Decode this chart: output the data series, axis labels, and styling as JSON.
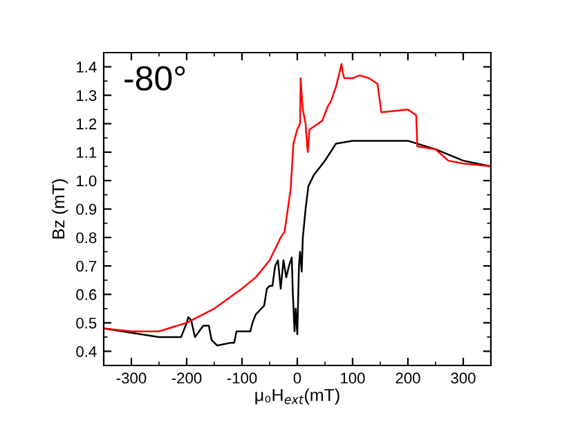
{
  "chart_data": {
    "type": "line",
    "xlabel": "μ₀H$_{ext}$(mT)",
    "ylabel": "Bz (mT)",
    "annotations": [
      "-80°"
    ],
    "xlim": [
      -350,
      350
    ],
    "xticks": [
      -300,
      -200,
      -100,
      0,
      100,
      200,
      300
    ],
    "ylim": [
      0.35,
      1.45
    ],
    "yticks": [
      0.4,
      0.5,
      0.6,
      0.7,
      0.8,
      0.9,
      {
        "value": 1.0,
        "label": "1.0"
      },
      1.1,
      1.2,
      1.3,
      1.4
    ],
    "grid": false,
    "legend": false,
    "marker": "none",
    "line_style": "solid",
    "series": [
      {
        "color": "#000000",
        "x": [
          -350,
          -300,
          -250,
          -210,
          -200,
          -197,
          -192,
          -185,
          -170,
          -160,
          -155,
          -145,
          -120,
          -114,
          -110,
          -85,
          -81,
          -75,
          -60,
          -55,
          -50,
          -45,
          -40,
          -35,
          -30,
          -25,
          -20,
          -15,
          -10,
          -8,
          -5,
          -3,
          0,
          3,
          5,
          8,
          10,
          15,
          20,
          30,
          50,
          70,
          100,
          150,
          200,
          250,
          300,
          350
        ],
        "values": [
          0.48,
          0.465,
          0.45,
          0.45,
          0.5,
          0.52,
          0.51,
          0.45,
          0.49,
          0.49,
          0.44,
          0.42,
          0.43,
          0.43,
          0.47,
          0.47,
          0.5,
          0.53,
          0.56,
          0.62,
          0.63,
          0.63,
          0.7,
          0.72,
          0.62,
          0.72,
          0.66,
          0.7,
          0.73,
          0.6,
          0.47,
          0.55,
          0.46,
          0.7,
          0.75,
          0.68,
          0.8,
          0.9,
          0.98,
          1.02,
          1.07,
          1.13,
          1.14,
          1.14,
          1.14,
          1.11,
          1.07,
          1.05
        ]
      },
      {
        "color": "#ff0000",
        "x": [
          -350,
          -300,
          -250,
          -200,
          -150,
          -100,
          -75,
          -50,
          -30,
          -23,
          -12,
          -7,
          0,
          5,
          6,
          8,
          10,
          15,
          18,
          19,
          22,
          30,
          45,
          55,
          61,
          70,
          80,
          82,
          85,
          100,
          113,
          130,
          145,
          152,
          200,
          215,
          217,
          250,
          273,
          300,
          350
        ],
        "values": [
          0.48,
          0.47,
          0.47,
          0.5,
          0.55,
          0.62,
          0.66,
          0.72,
          0.8,
          0.82,
          0.97,
          1.13,
          1.18,
          1.2,
          1.36,
          1.3,
          1.25,
          1.2,
          1.12,
          1.1,
          1.18,
          1.19,
          1.21,
          1.26,
          1.28,
          1.33,
          1.41,
          1.38,
          1.36,
          1.36,
          1.37,
          1.36,
          1.34,
          1.24,
          1.25,
          1.23,
          1.12,
          1.11,
          1.07,
          1.06,
          1.05
        ]
      }
    ]
  }
}
